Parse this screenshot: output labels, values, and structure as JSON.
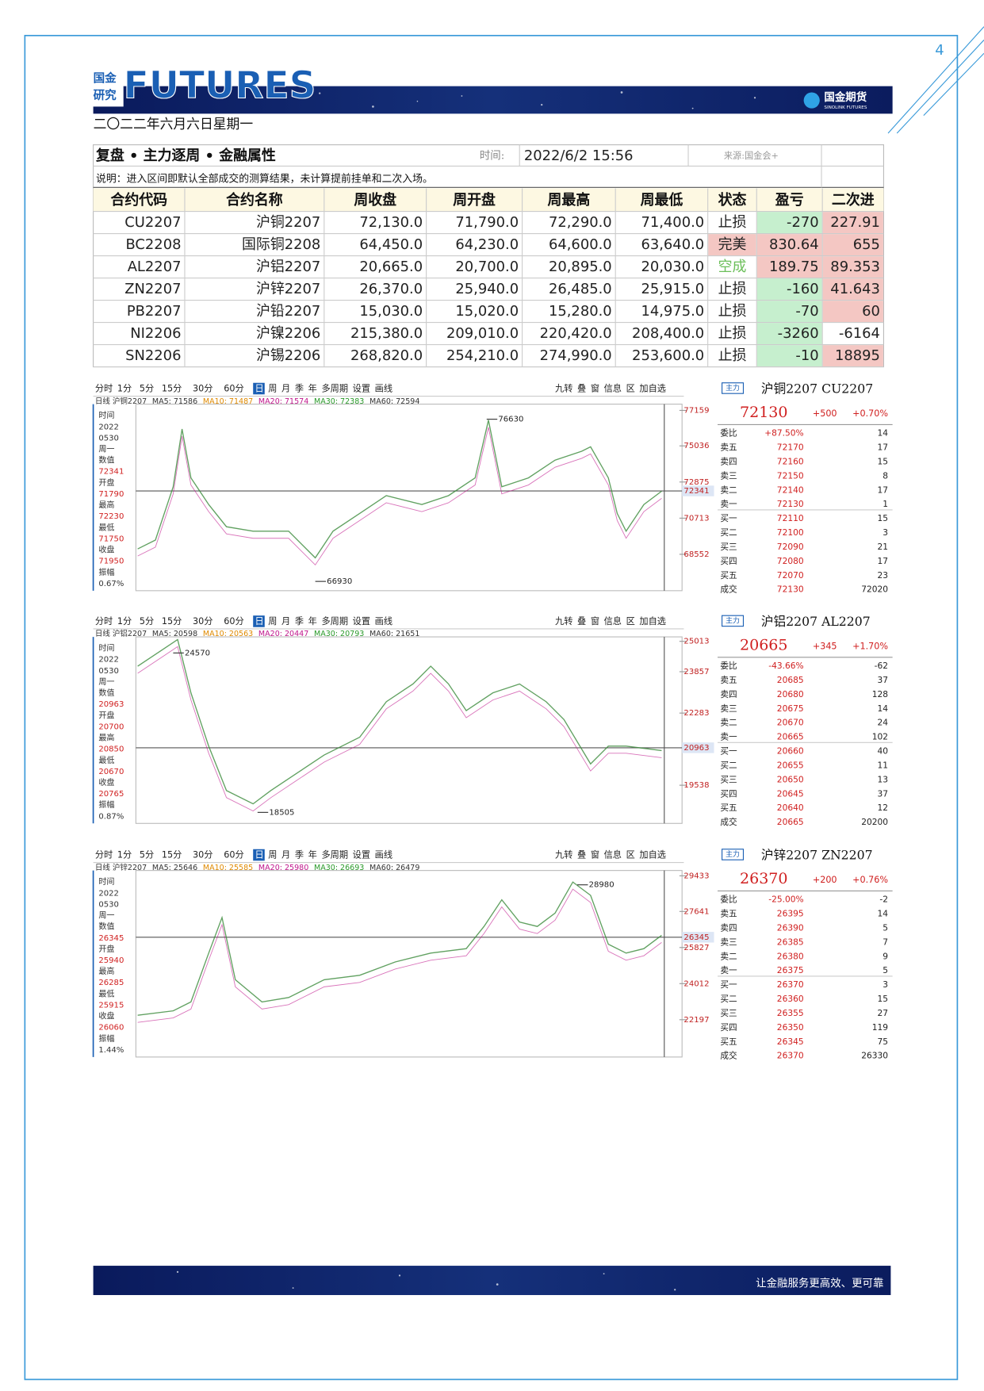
{
  "page_number": "4",
  "header": {
    "logo_small": [
      "国金",
      "研究"
    ],
    "logo_text": "FUTURES",
    "brand": "国金期货",
    "brand_en": "SINOLINK FUTURES",
    "date": "二〇二二年六月六日星期一"
  },
  "table": {
    "title": "复盘 • 主力逐周 • 金融属性",
    "time_label": "时间:",
    "time": "2022/6/2 15:56",
    "source": "来源:国金会+",
    "note": "说明：进入区间即默认全部成交的测算结果，未计算提前挂单和二次入场。",
    "columns": [
      "合约代码",
      "合约名称",
      "周收盘",
      "周开盘",
      "周最高",
      "周最低",
      "状态",
      "盈亏",
      "二次进"
    ],
    "rows": [
      [
        "CU2207",
        "沪铜2207",
        "72,130.0",
        "71,790.0",
        "72,290.0",
        "71,400.0",
        "止损",
        "-270",
        "227.91"
      ],
      [
        "BC2208",
        "国际铜2208",
        "64,450.0",
        "64,230.0",
        "64,600.0",
        "63,640.0",
        "完美",
        "830.64",
        "655"
      ],
      [
        "AL2207",
        "沪铝2207",
        "20,665.0",
        "20,700.0",
        "20,895.0",
        "20,030.0",
        "空成",
        "189.75",
        "89.353"
      ],
      [
        "ZN2207",
        "沪锌2207",
        "26,370.0",
        "25,940.0",
        "26,485.0",
        "25,915.0",
        "止损",
        "-160",
        "41.643"
      ],
      [
        "PB2207",
        "沪铅2207",
        "15,030.0",
        "15,020.0",
        "15,280.0",
        "14,975.0",
        "止损",
        "-70",
        "60"
      ],
      [
        "NI2206",
        "沪镍2206",
        "215,380.0",
        "209,010.0",
        "220,420.0",
        "208,400.0",
        "止损",
        "-3260",
        "-6164"
      ],
      [
        "SN2206",
        "沪锡2206",
        "268,820.0",
        "254,210.0",
        "274,990.0",
        "253,600.0",
        "止损",
        "-10",
        "18895"
      ]
    ]
  },
  "charts": [
    {
      "toolbar_left": [
        "分时",
        "1分",
        "5分",
        "15分",
        "30分",
        "60分",
        "日",
        "周",
        "月",
        "季",
        "年",
        "多周期",
        "设置",
        "画线"
      ],
      "toolbar_right": [
        "九转",
        "叠",
        "窗",
        "信息",
        "区",
        "加自选"
      ],
      "info": [
        "日线 沪铜2207",
        "MA5: 71586",
        "MA10: 71487",
        "MA20: 71574",
        "MA30: 72383",
        "MA60: 72594"
      ],
      "left_panel": [
        "时间",
        "2022",
        "0530",
        "周一",
        "数值",
        "72341",
        "开盘",
        "71790",
        "最高",
        "72230",
        "最低",
        "71750",
        "收盘",
        "71950",
        "振幅",
        "0.67%"
      ],
      "ylim": [
        66375,
        77531
      ],
      "yticks": [
        77159,
        75036,
        72875,
        72341,
        70713,
        68552
      ],
      "annotations": [
        76630,
        66930
      ],
      "side": {
        "tag": "主力",
        "title": "沪铜2207 CU2207",
        "price": "72130",
        "change": "+500",
        "pct": "+0.70%",
        "book": [
          [
            "委比",
            "+87.50%",
            "14"
          ],
          [
            "卖五",
            "72170",
            "17"
          ],
          [
            "卖四",
            "72160",
            "15"
          ],
          [
            "卖三",
            "72150",
            "8"
          ],
          [
            "卖二",
            "72140",
            "17"
          ],
          [
            "卖一",
            "72130",
            "1"
          ],
          [
            "买一",
            "72110",
            "15"
          ],
          [
            "买二",
            "72100",
            "3"
          ],
          [
            "买三",
            "72090",
            "21"
          ],
          [
            "买四",
            "72080",
            "17"
          ],
          [
            "买五",
            "72070",
            "23"
          ],
          [
            "成交",
            "72130",
            "72020"
          ]
        ]
      }
    },
    {
      "toolbar_left": [
        "分时",
        "1分",
        "5分",
        "15分",
        "30分",
        "60分",
        "日",
        "周",
        "月",
        "季",
        "年",
        "多周期",
        "设置",
        "画线"
      ],
      "toolbar_right": [
        "九转",
        "叠",
        "窗",
        "信息",
        "区",
        "加自选"
      ],
      "info": [
        "日线 沪铝2207",
        "MA5: 20598",
        "MA10: 20563",
        "MA20: 20447",
        "MA30: 20793",
        "MA60: 21651"
      ],
      "left_panel": [
        "时间",
        "2022",
        "0530",
        "周一",
        "数值",
        "20963",
        "开盘",
        "20700",
        "最高",
        "20850",
        "最低",
        "20670",
        "收盘",
        "20765",
        "振幅",
        "0.87%"
      ],
      "ylim": [
        18085,
        25182
      ],
      "yticks": [
        25013,
        23857,
        22283,
        20963,
        19538
      ],
      "annotations": [
        24570,
        18505
      ],
      "side": {
        "tag": "主力",
        "title": "沪铝2207 AL2207",
        "price": "20665",
        "change": "+345",
        "pct": "+1.70%",
        "book": [
          [
            "委比",
            "-43.66%",
            "-62"
          ],
          [
            "卖五",
            "20685",
            "37"
          ],
          [
            "卖四",
            "20680",
            "128"
          ],
          [
            "卖三",
            "20675",
            "14"
          ],
          [
            "卖二",
            "20670",
            "24"
          ],
          [
            "卖一",
            "20665",
            "102"
          ],
          [
            "买一",
            "20660",
            "40"
          ],
          [
            "买二",
            "20655",
            "11"
          ],
          [
            "买三",
            "20650",
            "13"
          ],
          [
            "买四",
            "20645",
            "37"
          ],
          [
            "买五",
            "20640",
            "12"
          ],
          [
            "成交",
            "20665",
            "20200"
          ]
        ]
      }
    },
    {
      "toolbar_left": [
        "分时",
        "1分",
        "5分",
        "15分",
        "30分",
        "60分",
        "日",
        "周",
        "月",
        "季",
        "年",
        "多周期",
        "设置",
        "画线"
      ],
      "toolbar_right": [
        "九转",
        "叠",
        "窗",
        "信息",
        "区",
        "加自选"
      ],
      "info": [
        "日线 沪锌2207",
        "MA5: 25646",
        "MA10: 25585",
        "MA20: 25980",
        "MA30: 26693",
        "MA60: 26479"
      ],
      "left_panel": [
        "时间",
        "2022",
        "0530",
        "周一",
        "数值",
        "26345",
        "开盘",
        "25940",
        "最高",
        "26285",
        "最低",
        "25915",
        "收盘",
        "26060",
        "振幅",
        "1.44%"
      ],
      "ylim": [
        20321,
        29701
      ],
      "yticks": [
        29433,
        27641,
        26345,
        25827,
        24012,
        22197
      ],
      "annotations": [
        28980
      ],
      "side": {
        "tag": "主力",
        "title": "沪锌2207 ZN2207",
        "price": "26370",
        "change": "+200",
        "pct": "+0.76%",
        "book": [
          [
            "委比",
            "-25.00%",
            "-2"
          ],
          [
            "卖五",
            "26395",
            "14"
          ],
          [
            "卖四",
            "26390",
            "5"
          ],
          [
            "卖三",
            "26385",
            "7"
          ],
          [
            "卖二",
            "26380",
            "9"
          ],
          [
            "卖一",
            "26375",
            "5"
          ],
          [
            "买一",
            "26370",
            "3"
          ],
          [
            "买二",
            "26360",
            "15"
          ],
          [
            "买三",
            "26355",
            "27"
          ],
          [
            "买四",
            "26350",
            "119"
          ],
          [
            "买五",
            "26345",
            "75"
          ],
          [
            "成交",
            "26370",
            "26330"
          ]
        ]
      }
    }
  ],
  "footer": {
    "slogan": "让金融服务更高效、更可靠"
  }
}
